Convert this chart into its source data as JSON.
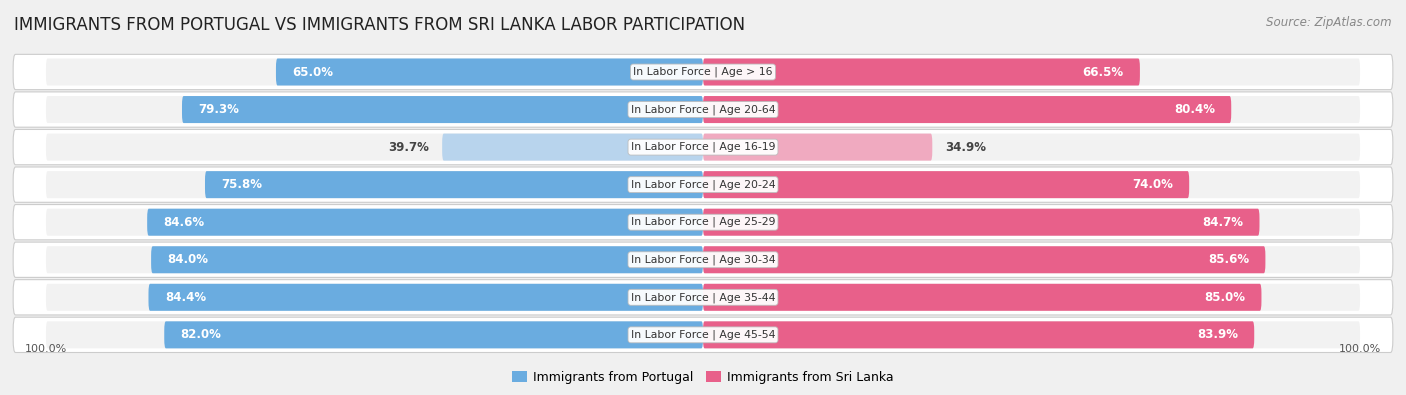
{
  "title": "IMMIGRANTS FROM PORTUGAL VS IMMIGRANTS FROM SRI LANKA LABOR PARTICIPATION",
  "source": "Source: ZipAtlas.com",
  "categories": [
    "In Labor Force | Age > 16",
    "In Labor Force | Age 20-64",
    "In Labor Force | Age 16-19",
    "In Labor Force | Age 20-24",
    "In Labor Force | Age 25-29",
    "In Labor Force | Age 30-34",
    "In Labor Force | Age 35-44",
    "In Labor Force | Age 45-54"
  ],
  "portugal_values": [
    65.0,
    79.3,
    39.7,
    75.8,
    84.6,
    84.0,
    84.4,
    82.0
  ],
  "srilanka_values": [
    66.5,
    80.4,
    34.9,
    74.0,
    84.7,
    85.6,
    85.0,
    83.9
  ],
  "portugal_color": "#6aace0",
  "portugal_color_light": "#b8d4ed",
  "srilanka_color": "#e8608a",
  "srilanka_color_light": "#f0aac0",
  "row_bg_color": "#e8e8e8",
  "bar_bg_color": "#f2f2f2",
  "legend_portugal": "Immigrants from Portugal",
  "legend_srilanka": "Immigrants from Sri Lanka",
  "max_value": 100.0,
  "title_fontsize": 12,
  "threshold_color": 60
}
